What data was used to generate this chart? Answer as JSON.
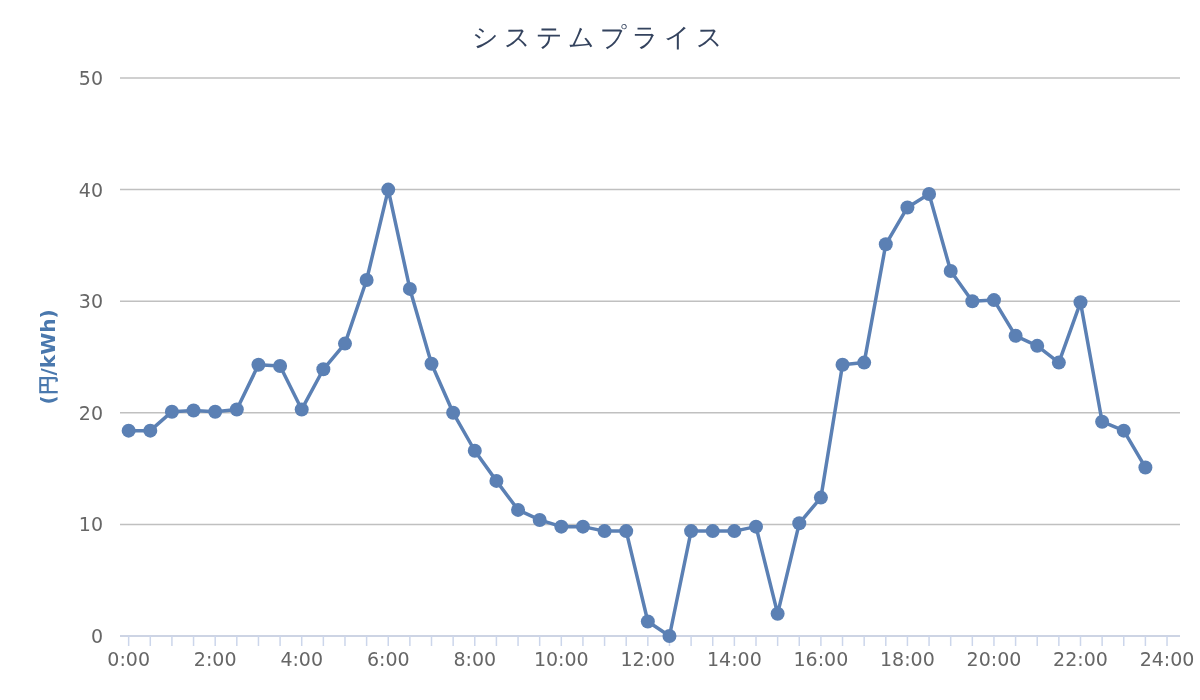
{
  "chart_data": {
    "type": "line",
    "title": "システムプライス",
    "ylabel": "(円/kWh)",
    "x": [
      0,
      0.5,
      1,
      1.5,
      2,
      2.5,
      3,
      3.5,
      4,
      4.5,
      5,
      5.5,
      6,
      6.5,
      7,
      7.5,
      8,
      8.5,
      9,
      9.5,
      10,
      10.5,
      11,
      11.5,
      12,
      12.5,
      13,
      13.5,
      14,
      14.5,
      15,
      15.5,
      16,
      16.5,
      17,
      17.5,
      18,
      18.5,
      19,
      19.5,
      20,
      20.5,
      21,
      21.5,
      22,
      22.5,
      23,
      23.5
    ],
    "series": [
      {
        "color": "#5b80b4",
        "values": [
          18.4,
          18.4,
          20.1,
          20.2,
          20.1,
          20.3,
          24.3,
          24.2,
          20.3,
          23.9,
          26.2,
          31.9,
          40.0,
          31.1,
          24.4,
          20.0,
          16.6,
          13.9,
          11.3,
          10.4,
          9.8,
          9.8,
          9.4,
          9.4,
          1.3,
          0.0,
          9.4,
          9.4,
          9.4,
          9.8,
          2.0,
          10.1,
          12.4,
          24.3,
          24.5,
          35.1,
          38.4,
          39.6,
          32.7,
          30.0,
          30.1,
          26.9,
          26.0,
          24.5,
          29.9,
          19.2,
          18.4,
          15.1
        ]
      }
    ],
    "xlim": [
      -0.2,
      24.3
    ],
    "xticks": [
      {
        "value": 0,
        "label": "0:00"
      },
      {
        "value": 0.5,
        "label": null
      },
      {
        "value": 1,
        "label": null
      },
      {
        "value": 1.5,
        "label": null
      },
      {
        "value": 2,
        "label": "2:00"
      },
      {
        "value": 2.5,
        "label": null
      },
      {
        "value": 3,
        "label": null
      },
      {
        "value": 3.5,
        "label": null
      },
      {
        "value": 4,
        "label": "4:00"
      },
      {
        "value": 4.5,
        "label": null
      },
      {
        "value": 5,
        "label": null
      },
      {
        "value": 5.5,
        "label": null
      },
      {
        "value": 6,
        "label": "6:00"
      },
      {
        "value": 6.5,
        "label": null
      },
      {
        "value": 7,
        "label": null
      },
      {
        "value": 7.5,
        "label": null
      },
      {
        "value": 8,
        "label": "8:00"
      },
      {
        "value": 8.5,
        "label": null
      },
      {
        "value": 9,
        "label": null
      },
      {
        "value": 9.5,
        "label": null
      },
      {
        "value": 10,
        "label": "10:00"
      },
      {
        "value": 10.5,
        "label": null
      },
      {
        "value": 11,
        "label": null
      },
      {
        "value": 11.5,
        "label": null
      },
      {
        "value": 12,
        "label": "12:00"
      },
      {
        "value": 12.5,
        "label": null
      },
      {
        "value": 13,
        "label": null
      },
      {
        "value": 13.5,
        "label": null
      },
      {
        "value": 14,
        "label": "14:00"
      },
      {
        "value": 14.5,
        "label": null
      },
      {
        "value": 15,
        "label": null
      },
      {
        "value": 15.5,
        "label": null
      },
      {
        "value": 16,
        "label": "16:00"
      },
      {
        "value": 16.5,
        "label": null
      },
      {
        "value": 17,
        "label": null
      },
      {
        "value": 17.5,
        "label": null
      },
      {
        "value": 18,
        "label": "18:00"
      },
      {
        "value": 18.5,
        "label": null
      },
      {
        "value": 19,
        "label": null
      },
      {
        "value": 19.5,
        "label": null
      },
      {
        "value": 20,
        "label": "20:00"
      },
      {
        "value": 20.5,
        "label": null
      },
      {
        "value": 21,
        "label": null
      },
      {
        "value": 21.5,
        "label": null
      },
      {
        "value": 22,
        "label": "22:00"
      },
      {
        "value": 22.5,
        "label": null
      },
      {
        "value": 23,
        "label": null
      },
      {
        "value": 23.5,
        "label": null
      },
      {
        "value": 24,
        "label": "24:00"
      }
    ],
    "ylim": [
      0,
      50
    ],
    "yticks": [
      0,
      10,
      20,
      30,
      40,
      50
    ],
    "grid": "y",
    "marker": "circle",
    "line_style": "solid"
  }
}
